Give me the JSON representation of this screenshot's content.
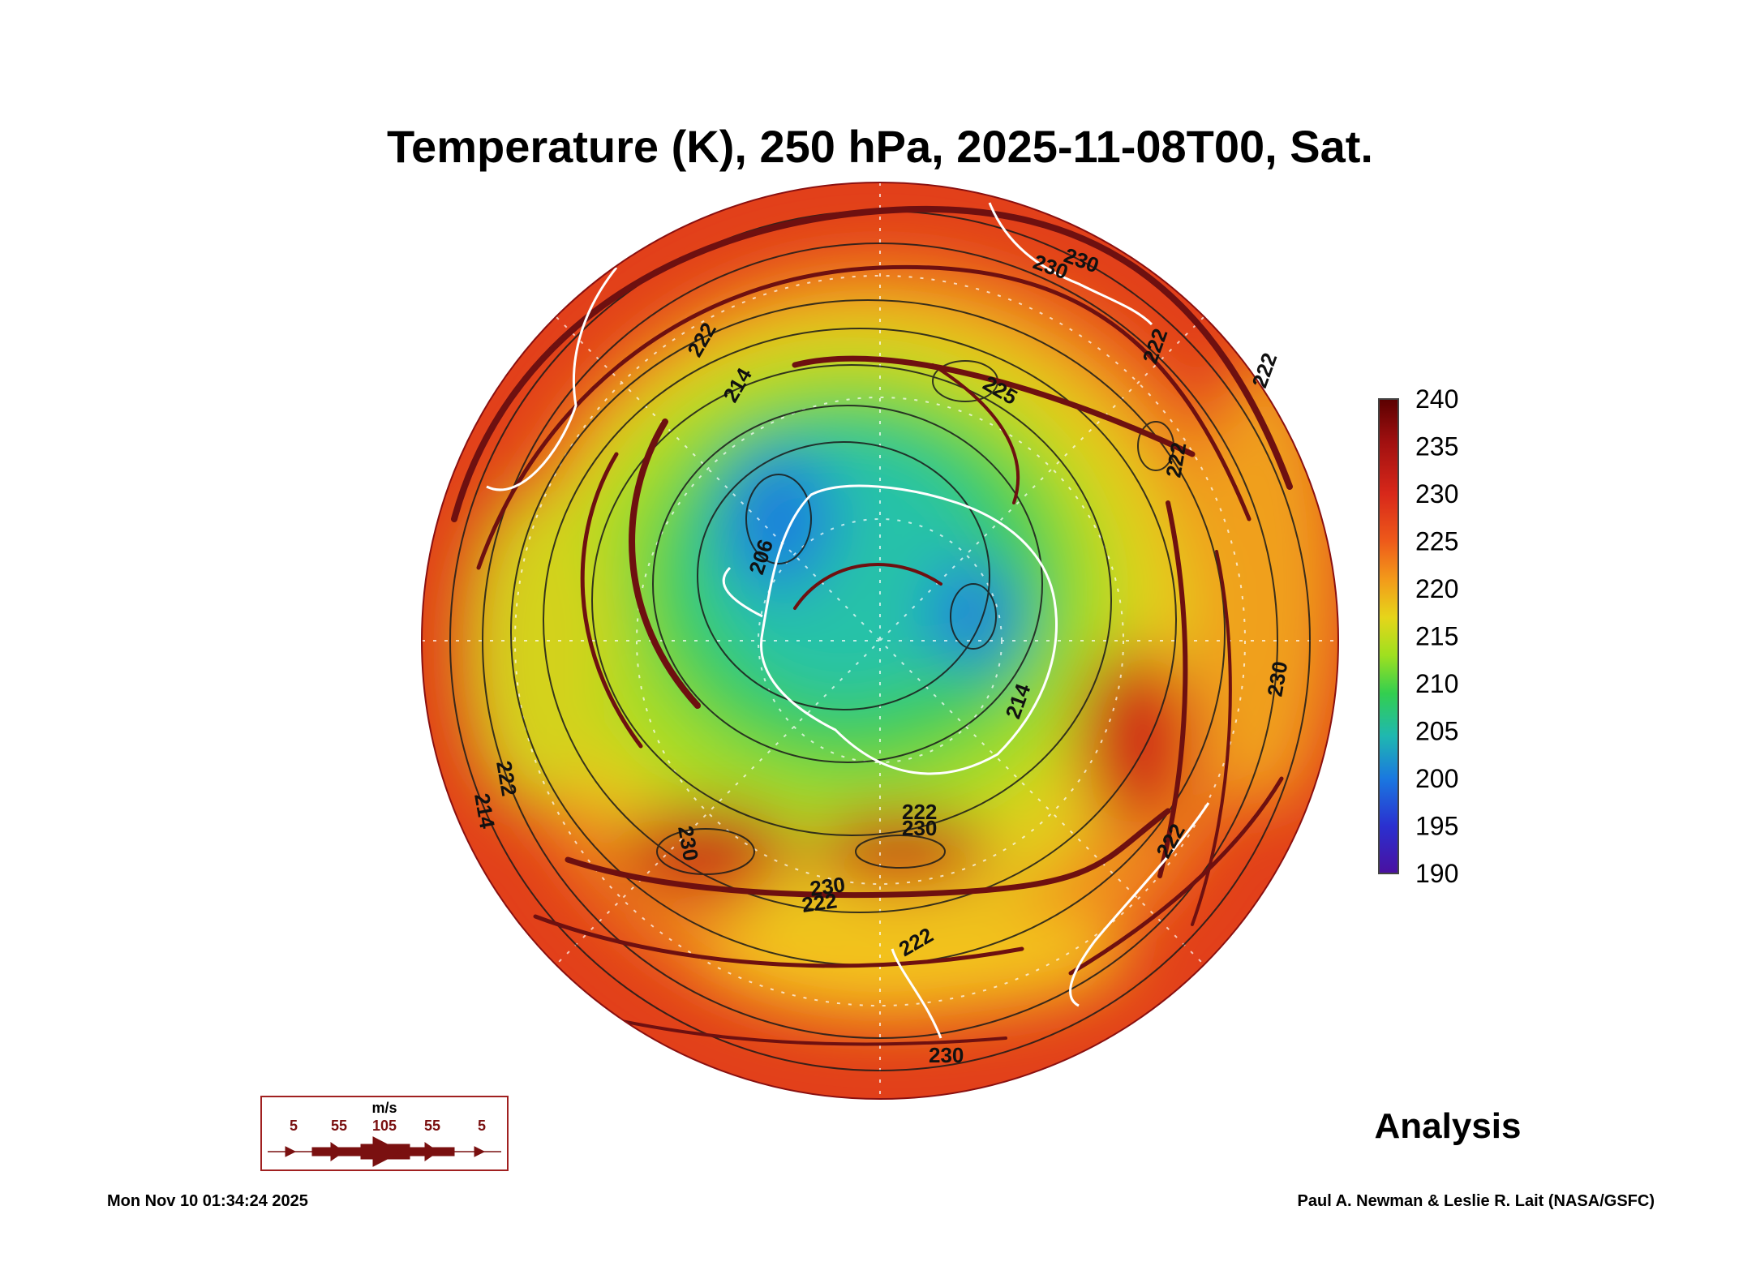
{
  "title": "Temperature (K), 250 hPa, 2025-11-08T00, Sat.",
  "colorbar": {
    "ticks": [
      "240",
      "235",
      "230",
      "225",
      "220",
      "215",
      "210",
      "205",
      "200",
      "195",
      "190"
    ],
    "colors": [
      "#5a0000",
      "#a01010",
      "#d8281a",
      "#ee5a1a",
      "#f39a1a",
      "#e6d51a",
      "#9fe01f",
      "#33cf4f",
      "#1fb8b0",
      "#1a78e0",
      "#2a30d0",
      "#4a10a0"
    ]
  },
  "contour_labels": [
    "222",
    "214",
    "230",
    "222",
    "225",
    "222",
    "222",
    "206",
    "214",
    "222",
    "230",
    "230",
    "222",
    "230",
    "222",
    "230",
    "230",
    "222",
    "222",
    "230",
    "214"
  ],
  "wind_legend": {
    "unit": "m/s",
    "labels": [
      "5",
      "55",
      "105",
      "55",
      "5"
    ]
  },
  "analysis_label": "Analysis",
  "timestamp": "Mon Nov 10 01:34:24 2025",
  "credit": "Paul A. Newman & Leslie R. Lait (NASA/GSFC)"
}
